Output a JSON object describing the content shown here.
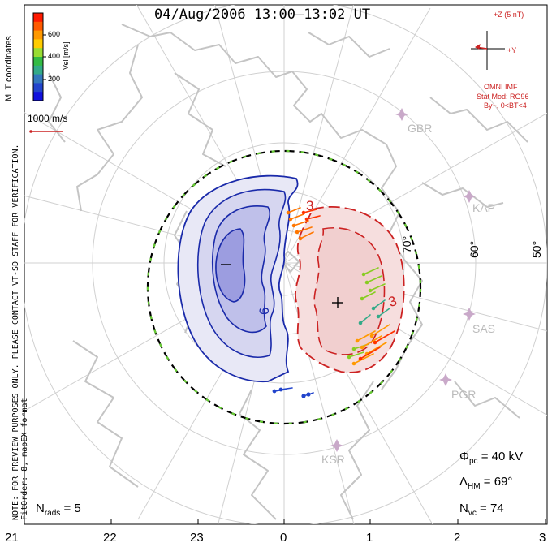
{
  "title": "04/Aug/2006 13:00–13:02 UT",
  "side_texts": {
    "left_outer": "NOTE: FOR PREVIEW PURPOSES ONLY. PLEASE CONTACT VT-SD STAFF FOR VERIFICATION.",
    "left_inner": "FitOrder: 8, mapEX format",
    "mlt": "MLT coordinates"
  },
  "colorbar": {
    "label": "Vel [m/s]",
    "ticks": [
      "600",
      "400",
      "200"
    ],
    "colors": [
      "#ff1a00",
      "#ff5a00",
      "#ff9900",
      "#ffcc00",
      "#99dd33",
      "#33bb44",
      "#33aa88",
      "#3377bb",
      "#2244cc",
      "#1111dd"
    ]
  },
  "scale_vector": {
    "label": "1000 m/s"
  },
  "imf": {
    "bz_label": "+Z (5 nT)",
    "by_label": "+Y",
    "omni": "OMNI IMF",
    "stat_mod": "Stat Mod: RG96",
    "conditions": "By−, 0<BT<4"
  },
  "radars": [
    "GBR",
    "KAP",
    "SAS",
    "PGR",
    "KSR"
  ],
  "latitude_labels": [
    "70°",
    "60°",
    "50°"
  ],
  "contour_labels": {
    "neg": "−",
    "pos": "+",
    "neg_value": "6",
    "pos_value_top": "3",
    "pos_value_bottom": "3"
  },
  "stats": {
    "phi_pc": "= 40 kV",
    "lambda_hm": "= 69°",
    "n_vc": "= 74",
    "n_rads": "= 5"
  },
  "mlt_axis": [
    "21",
    "22",
    "23",
    "0",
    "1",
    "2",
    "3"
  ],
  "colors": {
    "convection_pos": "#cc2222",
    "convection_neg": "#2233aa",
    "hmb_green": "#66cc33",
    "land": "#c8c8c8",
    "grid": "#d0d0d0"
  }
}
